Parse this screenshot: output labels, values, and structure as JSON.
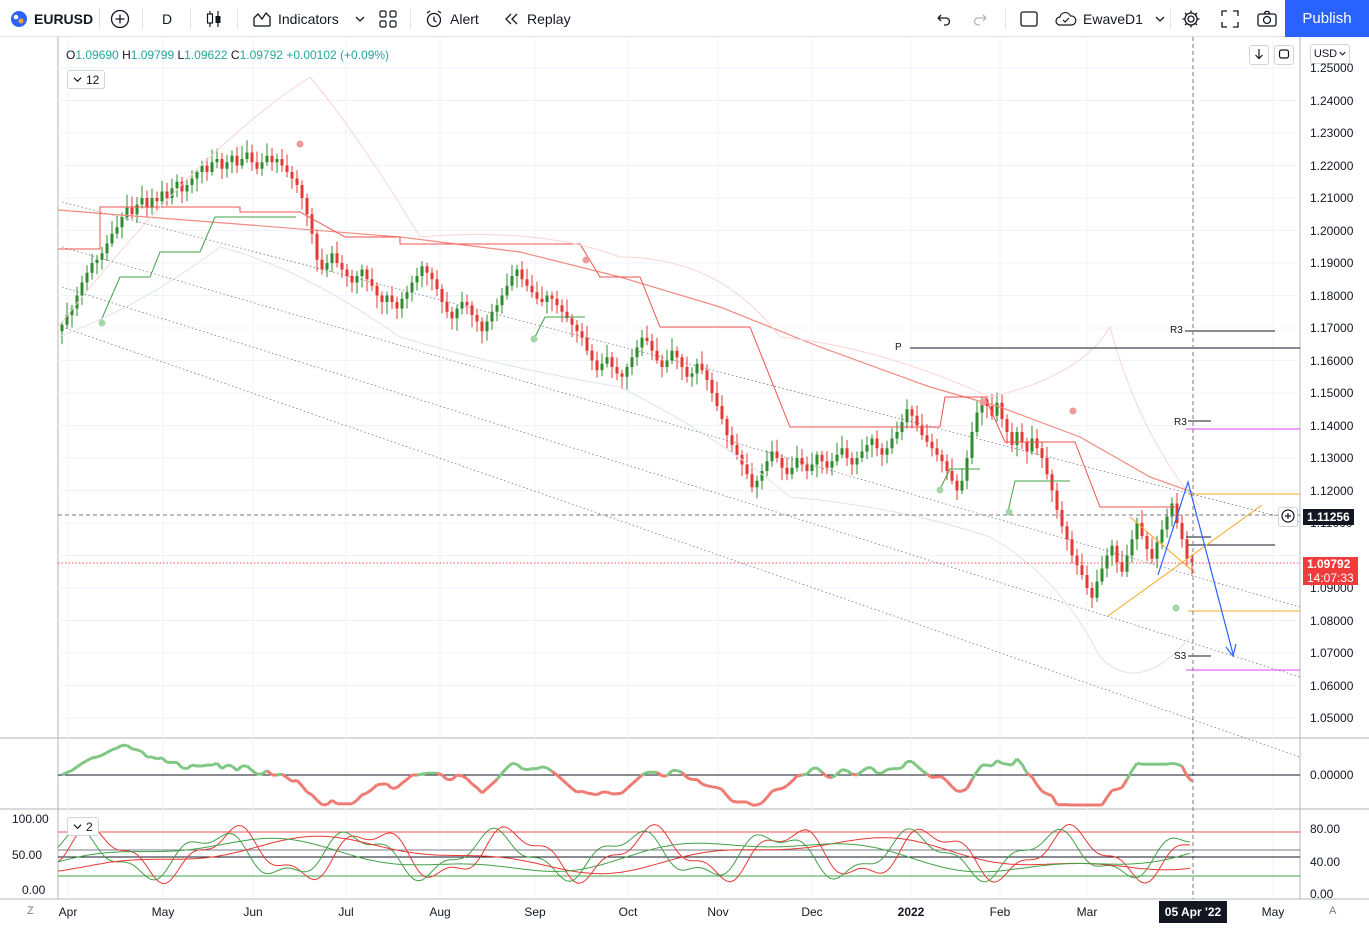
{
  "toolbar": {
    "symbol": "EURUSD",
    "interval": "D",
    "indicators_label": "Indicators",
    "alert_label": "Alert",
    "replay_label": "Replay",
    "layout_name": "EwaveD1",
    "publish_label": "Publish"
  },
  "legend": {
    "o_label": "O",
    "o_value": "1.09690",
    "h_label": "H",
    "h_value": "1.09799",
    "l_label": "L",
    "l_value": "1.09622",
    "c_label": "C",
    "c_value": "1.09792",
    "change": "+0.00102 (+0.09%)",
    "indicator_count": "12",
    "pane2_count": "2"
  },
  "currency": "USD",
  "price_axis": [
    "1.25000",
    "1.24000",
    "1.23000",
    "1.22000",
    "1.21000",
    "1.20000",
    "1.19000",
    "1.18000",
    "1.17000",
    "1.16000",
    "1.15000",
    "1.14000",
    "1.13000",
    "1.12000",
    "1.11000",
    "1.10000",
    "1.09000",
    "1.08000",
    "1.07000",
    "1.06000",
    "1.05000"
  ],
  "crosshair_price": "1.11256",
  "last_price": "1.09792",
  "countdown": "14:07:33",
  "pane1_axis": "0.00000",
  "pane2_axis": [
    "80.00",
    "40.00",
    "0.00"
  ],
  "pane2_left_axis": [
    "100.00",
    "50.00",
    "0.00"
  ],
  "pivot_labels": {
    "p": "P",
    "r3a": "R3",
    "r3b": "R3",
    "s3": "S3"
  },
  "time_axis": [
    "Apr",
    "May",
    "Jun",
    "Jul",
    "Aug",
    "Sep",
    "Oct",
    "Nov",
    "Dec",
    "2022",
    "Feb",
    "Mar",
    "May"
  ],
  "current_date": "05 Apr '22",
  "corner_left": "Z",
  "corner_right": "A",
  "colors": {
    "up": "#26a69a",
    "bull": "#2e8b2e",
    "bear": "#e53935",
    "accent": "#2962ff"
  },
  "chart_data": {
    "type": "candlestick",
    "symbol": "EURUSD",
    "ylim": [
      1.045,
      1.255
    ],
    "series": [
      {
        "name": "EURUSD",
        "closes": [
          1.171,
          1.174,
          1.176,
          1.18,
          1.184,
          1.187,
          1.19,
          1.191,
          1.193,
          1.196,
          1.199,
          1.201,
          1.204,
          1.207,
          1.205,
          1.208,
          1.21,
          1.207,
          1.21,
          1.209,
          1.212,
          1.21,
          1.213,
          1.215,
          1.212,
          1.214,
          1.216,
          1.218,
          1.22,
          1.218,
          1.221,
          1.222,
          1.219,
          1.221,
          1.223,
          1.22,
          1.222,
          1.224,
          1.221,
          1.219,
          1.221,
          1.223,
          1.221,
          1.222,
          1.22,
          1.218,
          1.216,
          1.214,
          1.21,
          1.205,
          1.199,
          1.191,
          1.188,
          1.19,
          1.193,
          1.19,
          1.188,
          1.186,
          1.184,
          1.186,
          1.188,
          1.185,
          1.183,
          1.18,
          1.178,
          1.18,
          1.178,
          1.176,
          1.179,
          1.181,
          1.184,
          1.186,
          1.189,
          1.187,
          1.185,
          1.182,
          1.178,
          1.175,
          1.173,
          1.176,
          1.178,
          1.177,
          1.174,
          1.172,
          1.169,
          1.172,
          1.175,
          1.177,
          1.18,
          1.183,
          1.186,
          1.188,
          1.185,
          1.183,
          1.181,
          1.179,
          1.178,
          1.18,
          1.179,
          1.177,
          1.175,
          1.173,
          1.171,
          1.169,
          1.167,
          1.163,
          1.16,
          1.157,
          1.159,
          1.161,
          1.158,
          1.156,
          1.155,
          1.158,
          1.161,
          1.164,
          1.167,
          1.166,
          1.163,
          1.16,
          1.158,
          1.16,
          1.163,
          1.161,
          1.158,
          1.155,
          1.156,
          1.159,
          1.157,
          1.154,
          1.15,
          1.146,
          1.142,
          1.137,
          1.134,
          1.131,
          1.128,
          1.125,
          1.121,
          1.123,
          1.126,
          1.129,
          1.132,
          1.13,
          1.127,
          1.125,
          1.127,
          1.13,
          1.128,
          1.126,
          1.128,
          1.131,
          1.129,
          1.127,
          1.129,
          1.131,
          1.133,
          1.13,
          1.128,
          1.13,
          1.132,
          1.134,
          1.136,
          1.133,
          1.131,
          1.133,
          1.136,
          1.138,
          1.141,
          1.145,
          1.143,
          1.14,
          1.137,
          1.135,
          1.133,
          1.131,
          1.129,
          1.126,
          1.123,
          1.12,
          1.123,
          1.13,
          1.138,
          1.144,
          1.148,
          1.146,
          1.143,
          1.147,
          1.142,
          1.138,
          1.134,
          1.138,
          1.135,
          1.132,
          1.136,
          1.133,
          1.13,
          1.125,
          1.12,
          1.114,
          1.109,
          1.105,
          1.1,
          1.097,
          1.094,
          1.09,
          1.087,
          1.092,
          1.096,
          1.1,
          1.103,
          1.098,
          1.095,
          1.1,
          1.105,
          1.11,
          1.106,
          1.102,
          1.099,
          1.104,
          1.108,
          1.112,
          1.116,
          1.11,
          1.105,
          1.099,
          1.0979
        ]
      }
    ],
    "annotations": [
      "P",
      "R3",
      "R3",
      "S3"
    ],
    "current_date": "05 Apr '22"
  }
}
